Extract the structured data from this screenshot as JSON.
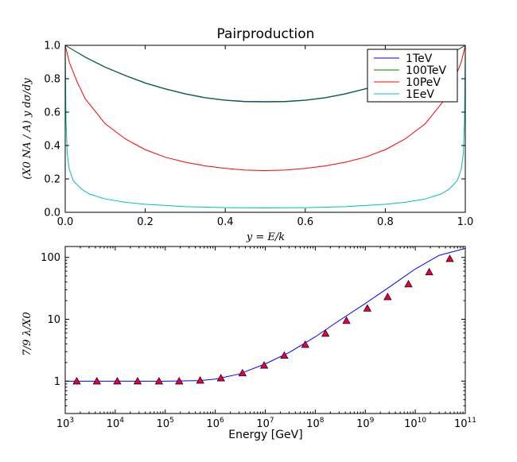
{
  "chart_data": [
    {
      "type": "line",
      "title": "Pairproduction",
      "xlabel": "y = E/k",
      "ylabel": "(X0 NA / A) y dσ/dy",
      "xlim": [
        0.0,
        1.0
      ],
      "ylim": [
        0.0,
        1.0
      ],
      "xticks": [
        "0.0",
        "0.2",
        "0.4",
        "0.6",
        "0.8",
        "1.0"
      ],
      "yticks": [
        "0.0",
        "0.2",
        "0.4",
        "0.6",
        "0.8",
        "1.0"
      ],
      "grid": false,
      "legend_position": "top-right",
      "series": [
        {
          "name": "1TeV",
          "color": "#0000ff",
          "points": [
            [
              0.0,
              1.0
            ],
            [
              0.05,
              0.93
            ],
            [
              0.1,
              0.87
            ],
            [
              0.15,
              0.82
            ],
            [
              0.2,
              0.775
            ],
            [
              0.25,
              0.74
            ],
            [
              0.3,
              0.71
            ],
            [
              0.35,
              0.687
            ],
            [
              0.4,
              0.672
            ],
            [
              0.45,
              0.664
            ],
            [
              0.5,
              0.663
            ],
            [
              0.55,
              0.664
            ],
            [
              0.6,
              0.672
            ],
            [
              0.65,
              0.687
            ],
            [
              0.7,
              0.71
            ],
            [
              0.75,
              0.74
            ],
            [
              0.8,
              0.775
            ],
            [
              0.85,
              0.82
            ],
            [
              0.9,
              0.87
            ],
            [
              0.95,
              0.93
            ],
            [
              1.0,
              1.0
            ]
          ]
        },
        {
          "name": "100TeV",
          "color": "#008000",
          "points": [
            [
              0.0,
              1.0
            ],
            [
              0.05,
              0.928
            ],
            [
              0.1,
              0.868
            ],
            [
              0.15,
              0.818
            ],
            [
              0.2,
              0.773
            ],
            [
              0.25,
              0.738
            ],
            [
              0.3,
              0.708
            ],
            [
              0.35,
              0.685
            ],
            [
              0.4,
              0.67
            ],
            [
              0.45,
              0.662
            ],
            [
              0.5,
              0.661
            ],
            [
              0.55,
              0.662
            ],
            [
              0.6,
              0.67
            ],
            [
              0.65,
              0.685
            ],
            [
              0.7,
              0.708
            ],
            [
              0.75,
              0.738
            ],
            [
              0.8,
              0.773
            ],
            [
              0.85,
              0.818
            ],
            [
              0.9,
              0.868
            ],
            [
              0.95,
              0.928
            ],
            [
              1.0,
              1.0
            ]
          ]
        },
        {
          "name": "10PeV",
          "color": "#ff0000",
          "points": [
            [
              0.0,
              1.0
            ],
            [
              0.01,
              0.9
            ],
            [
              0.03,
              0.78
            ],
            [
              0.05,
              0.68
            ],
            [
              0.1,
              0.53
            ],
            [
              0.15,
              0.44
            ],
            [
              0.2,
              0.375
            ],
            [
              0.25,
              0.33
            ],
            [
              0.3,
              0.3
            ],
            [
              0.35,
              0.278
            ],
            [
              0.4,
              0.263
            ],
            [
              0.45,
              0.253
            ],
            [
              0.5,
              0.25
            ],
            [
              0.55,
              0.253
            ],
            [
              0.6,
              0.263
            ],
            [
              0.65,
              0.278
            ],
            [
              0.7,
              0.3
            ],
            [
              0.75,
              0.33
            ],
            [
              0.8,
              0.375
            ],
            [
              0.85,
              0.44
            ],
            [
              0.9,
              0.53
            ],
            [
              0.95,
              0.68
            ],
            [
              0.97,
              0.78
            ],
            [
              0.99,
              0.9
            ],
            [
              1.0,
              1.0
            ]
          ]
        },
        {
          "name": "1EeV",
          "color": "#00bfbf",
          "points": [
            [
              0.0,
              1.0
            ],
            [
              0.002,
              0.55
            ],
            [
              0.005,
              0.35
            ],
            [
              0.01,
              0.26
            ],
            [
              0.02,
              0.19
            ],
            [
              0.04,
              0.14
            ],
            [
              0.06,
              0.11
            ],
            [
              0.1,
              0.08
            ],
            [
              0.15,
              0.06
            ],
            [
              0.2,
              0.048
            ],
            [
              0.3,
              0.034
            ],
            [
              0.4,
              0.028
            ],
            [
              0.5,
              0.026
            ],
            [
              0.6,
              0.028
            ],
            [
              0.7,
              0.034
            ],
            [
              0.8,
              0.048
            ],
            [
              0.85,
              0.06
            ],
            [
              0.9,
              0.08
            ],
            [
              0.94,
              0.11
            ],
            [
              0.96,
              0.14
            ],
            [
              0.98,
              0.19
            ],
            [
              0.99,
              0.26
            ],
            [
              0.995,
              0.35
            ],
            [
              0.998,
              0.55
            ],
            [
              1.0,
              1.0
            ]
          ]
        }
      ]
    },
    {
      "type": "line",
      "title": "",
      "xlabel": "Energy [GeV]",
      "ylabel": "7/9 λ/X0",
      "xscale": "log",
      "yscale": "log",
      "xlim": [
        1000,
        100000000000
      ],
      "ylim": [
        0.3,
        150
      ],
      "xticks": [
        {
          "value": 1000,
          "base": "10",
          "exp": "3"
        },
        {
          "value": 10000,
          "base": "10",
          "exp": "4"
        },
        {
          "value": 100000,
          "base": "10",
          "exp": "5"
        },
        {
          "value": 1000000,
          "base": "10",
          "exp": "6"
        },
        {
          "value": 10000000,
          "base": "10",
          "exp": "7"
        },
        {
          "value": 100000000,
          "base": "10",
          "exp": "8"
        },
        {
          "value": 1000000000,
          "base": "10",
          "exp": "9"
        },
        {
          "value": 10000000000,
          "base": "10",
          "exp": "10"
        },
        {
          "value": 100000000000,
          "base": "10",
          "exp": "11"
        }
      ],
      "yticks": [
        {
          "value": 1,
          "label": "1"
        },
        {
          "value": 10,
          "label": "10"
        },
        {
          "value": 100,
          "label": "100"
        }
      ],
      "grid": false,
      "series": [
        {
          "color": "#0000ff",
          "style": "line",
          "points": [
            [
              1000,
              1.0
            ],
            [
              100000,
              1.0
            ],
            [
              500000,
              1.02
            ],
            [
              1000000,
              1.08
            ],
            [
              3000000,
              1.3
            ],
            [
              10000000,
              1.9
            ],
            [
              30000000,
              2.9
            ],
            [
              100000000,
              5.2
            ],
            [
              300000000,
              9.5
            ],
            [
              1000000000,
              18
            ],
            [
              3000000000,
              33
            ],
            [
              10000000000,
              65
            ],
            [
              30000000000,
              108
            ],
            [
              100000000000,
              140
            ]
          ]
        },
        {
          "color": "#ff0000",
          "edge_color": "#00008b",
          "style": "markers",
          "marker": "triangle",
          "points": [
            [
              1700,
              1.0
            ],
            [
              4300,
              1.0
            ],
            [
              11000,
              1.0
            ],
            [
              28000,
              1.0
            ],
            [
              75000,
              1.0
            ],
            [
              190000,
              1.0
            ],
            [
              500000,
              1.03
            ],
            [
              1300000,
              1.12
            ],
            [
              3500000,
              1.35
            ],
            [
              9500000,
              1.8
            ],
            [
              24000000,
              2.6
            ],
            [
              63000000,
              3.9
            ],
            [
              160000000,
              5.9
            ],
            [
              420000000,
              9.5
            ],
            [
              1100000000,
              15
            ],
            [
              2800000000,
              23
            ],
            [
              7300000000,
              37
            ],
            [
              19000000000,
              58
            ],
            [
              49000000000,
              95
            ]
          ]
        }
      ]
    }
  ]
}
